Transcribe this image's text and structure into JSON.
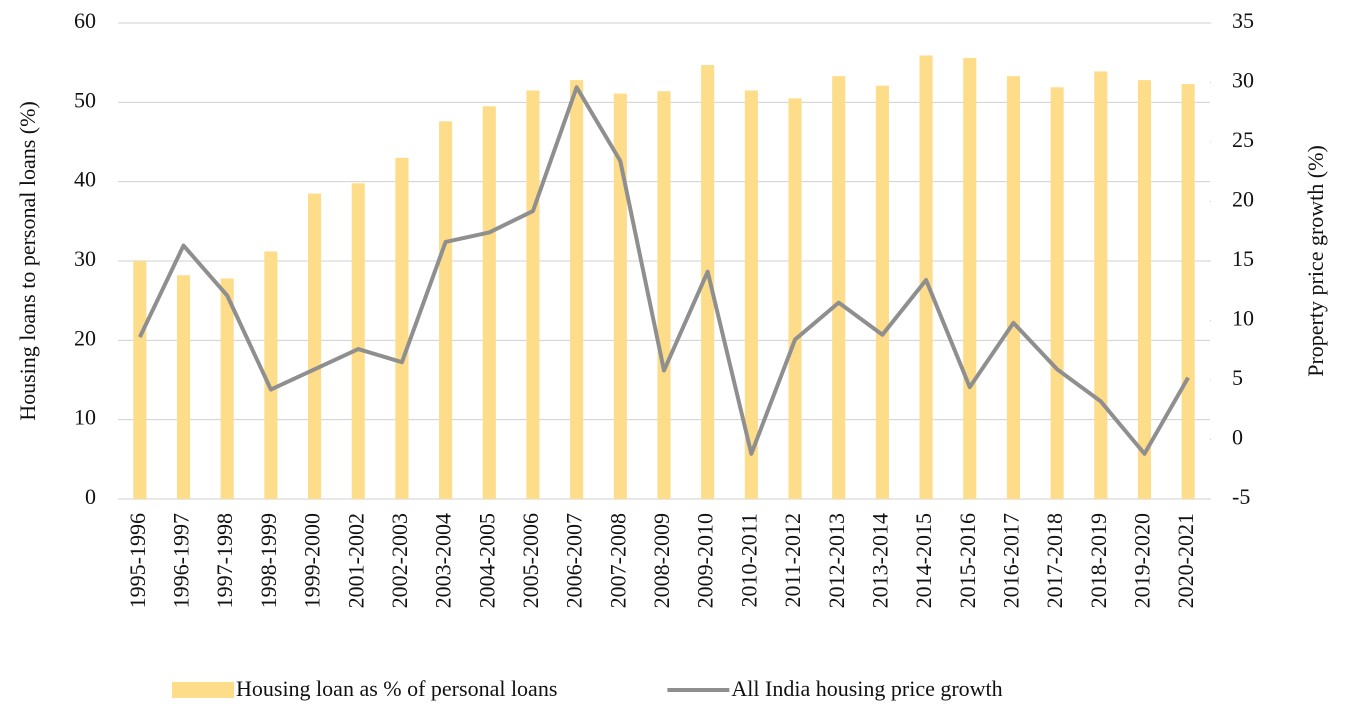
{
  "chart_data": {
    "type": "bar_line",
    "categories": [
      "1995-1996",
      "1996-1997",
      "1997-1998",
      "1998-1999",
      "1999-2000",
      "2001-2002",
      "2002-2003",
      "2003-2004",
      "2004-2005",
      "2005-2006",
      "2006-2007",
      "2007-2008",
      "2008-2009",
      "2009-2010",
      "2010-2011",
      "2011-2012",
      "2012-2013",
      "2013-2014",
      "2014-2015",
      "2015-2016",
      "2016-2017",
      "2017-2018",
      "2018-2019",
      "2019-2020",
      "2020-2021"
    ],
    "series": [
      {
        "name": "Housing loan as % of personal loans",
        "type": "bar",
        "color": "#fddc8a",
        "values": [
          30,
          28.2,
          27.8,
          31.2,
          38.5,
          39.8,
          43,
          47.6,
          49.5,
          51.5,
          52.8,
          51.1,
          51.4,
          54.7,
          51.5,
          50.5,
          53.3,
          52.1,
          55.9,
          55.6,
          53.3,
          51.9,
          53.9,
          52.8,
          52.3
        ]
      },
      {
        "name": "All India housing price growth",
        "type": "line",
        "axis": "y2",
        "color": "#8f8f8f",
        "values": [
          8.6,
          16.3,
          12.1,
          4.2,
          5.9,
          7.6,
          6.5,
          16.6,
          17.4,
          19.2,
          29.6,
          23.4,
          5.8,
          14.1,
          -1.2,
          8.4,
          11.5,
          8.8,
          13.4,
          4.4,
          9.8,
          5.9,
          3.2,
          -1.2,
          5.2
        ]
      }
    ],
    "ylabel": "Housing loans to personal loans (%)",
    "y2label": "Property price growth (%)",
    "ylim": [
      0,
      60
    ],
    "yticks": [
      0,
      10,
      20,
      30,
      40,
      50,
      60
    ],
    "y2lim": [
      -5,
      35
    ],
    "y2ticks": [
      -5,
      0,
      5,
      10,
      15,
      20,
      25,
      30,
      35
    ],
    "grid": true,
    "legend": "bottom"
  }
}
